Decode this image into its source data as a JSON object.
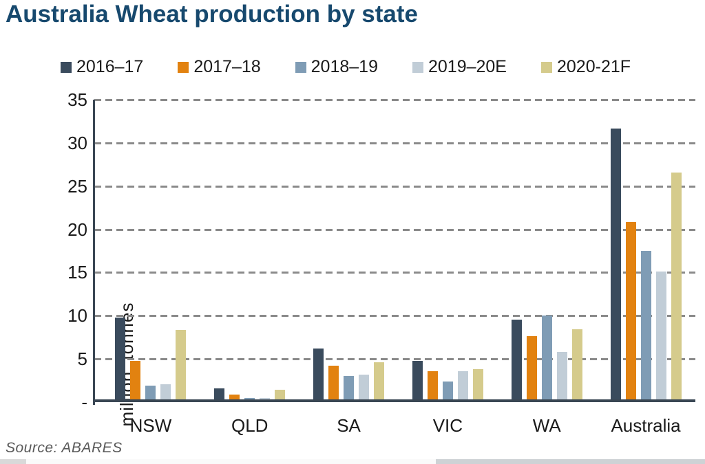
{
  "title": {
    "text": "Australia Wheat production by state",
    "color": "#17496e"
  },
  "source": {
    "text": "Source: ABARES"
  },
  "colors": {
    "axis": "#3a4754",
    "gridline": "#8a8a8a",
    "tick_text": "#1a1a1a",
    "source_text": "#595959"
  },
  "chart_data": {
    "type": "bar",
    "title": "Australia Wheat production by state",
    "categories": [
      "NSW",
      "QLD",
      "SA",
      "VIC",
      "WA",
      "Australia"
    ],
    "series": [
      {
        "name": "2016–17",
        "color": "#3a4b5d",
        "values": [
          9.8,
          1.6,
          6.2,
          4.8,
          9.6,
          31.8
        ]
      },
      {
        "name": "2017–18",
        "color": "#e28210",
        "values": [
          4.8,
          0.9,
          4.2,
          3.6,
          7.7,
          20.9
        ]
      },
      {
        "name": "2018–19",
        "color": "#7f9cb5",
        "values": [
          1.9,
          0.5,
          3.0,
          2.4,
          10.1,
          17.6
        ]
      },
      {
        "name": "2019–20E",
        "color": "#c1cdd7",
        "values": [
          2.1,
          0.5,
          3.2,
          3.6,
          5.8,
          15.2
        ]
      },
      {
        "name": "2020-21F",
        "color": "#d5cb8c",
        "values": [
          8.4,
          1.4,
          4.6,
          3.8,
          8.5,
          26.7
        ]
      }
    ],
    "xlabel": "",
    "ylabel": "million tonnes",
    "ylim": [
      0,
      35
    ],
    "yticks": [
      0,
      5,
      10,
      15,
      20,
      25,
      30,
      35
    ],
    "ytick_labels": [
      "-",
      "5",
      "10",
      "15",
      "20",
      "25",
      "30",
      "35"
    ],
    "grid": "horizontal-dashed",
    "legend_position": "top"
  }
}
